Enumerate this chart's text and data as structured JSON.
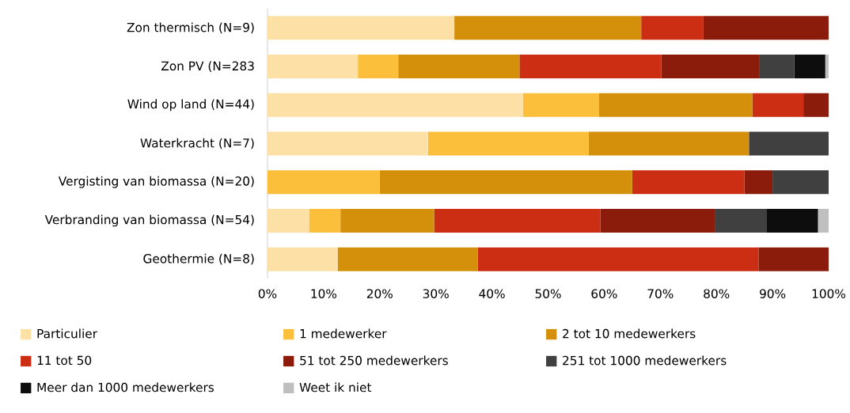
{
  "chart_data": {
    "type": "bar",
    "orientation": "horizontal",
    "stacked": true,
    "categories": [
      "Zon thermisch (N=9)",
      "Zon PV (N=283",
      "Wind op land (N=44)",
      "Waterkracht (N=7)",
      "Vergisting van biomassa (N=20)",
      "Verbranding van biomassa (N=54)",
      "Geothermie (N=8)"
    ],
    "series": [
      {
        "name": "Particulier",
        "color": "#fde0a6",
        "values": [
          33.3,
          16.1,
          45.5,
          28.6,
          0,
          7.4,
          12.5
        ]
      },
      {
        "name": "1 medewerker",
        "color": "#fbbf3c",
        "values": [
          0,
          7.2,
          13.6,
          28.6,
          20,
          5.6,
          0
        ]
      },
      {
        "name": "2 tot 10 medewerkers",
        "color": "#d4900a",
        "values": [
          33.3,
          21.6,
          27.3,
          28.6,
          45,
          16.7,
          25
        ]
      },
      {
        "name": "11 tot 50",
        "color": "#cc2e14",
        "values": [
          11.1,
          25.3,
          9.1,
          0,
          20,
          29.6,
          50
        ]
      },
      {
        "name": "51 tot 250 medewerkers",
        "color": "#8b1c0c",
        "values": [
          22.3,
          17.4,
          4.5,
          0,
          5,
          20.4,
          12.5
        ]
      },
      {
        "name": "251 tot 1000 medewerkers",
        "color": "#404040",
        "values": [
          0,
          6.3,
          0,
          14.2,
          10,
          9.3,
          0
        ]
      },
      {
        "name": "Meer dan 1000 medewerkers",
        "color": "#0d0d0d",
        "values": [
          0,
          5.5,
          0,
          0,
          0,
          9.1,
          0
        ]
      },
      {
        "name": "Weet ik niet",
        "color": "#bfbfbf",
        "values": [
          0,
          0.6,
          0,
          0,
          0,
          1.9,
          0
        ]
      }
    ],
    "xlim": [
      0,
      100
    ],
    "xticks": [
      {
        "value": 0,
        "label": "0%"
      },
      {
        "value": 10,
        "label": "10%"
      },
      {
        "value": 20,
        "label": "20%"
      },
      {
        "value": 30,
        "label": "30%"
      },
      {
        "value": 40,
        "label": "40%"
      },
      {
        "value": 50,
        "label": "50%"
      },
      {
        "value": 60,
        "label": "60%"
      },
      {
        "value": 70,
        "label": "70%"
      },
      {
        "value": 80,
        "label": "80%"
      },
      {
        "value": 90,
        "label": "90%"
      },
      {
        "value": 100,
        "label": "100%"
      }
    ],
    "legend": "bottom"
  }
}
